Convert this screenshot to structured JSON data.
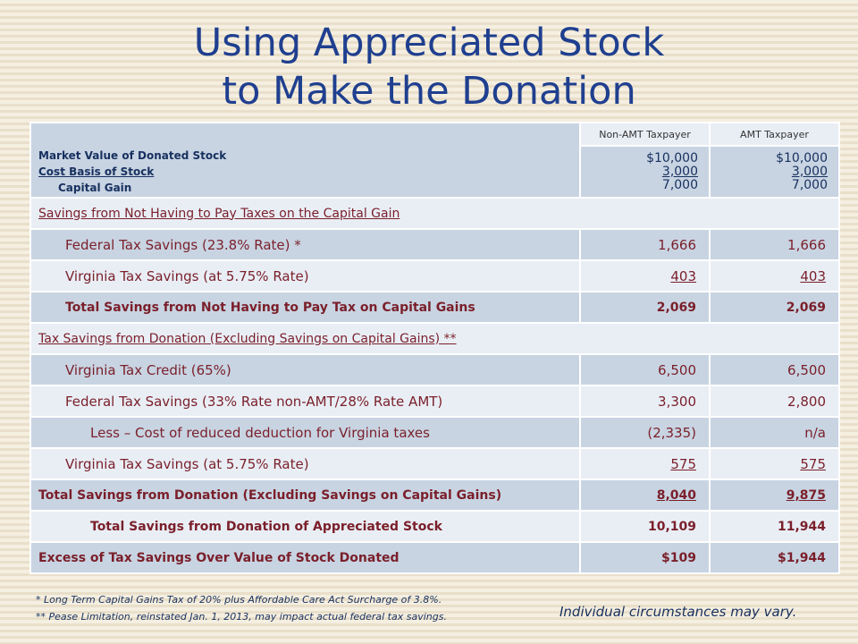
{
  "title": {
    "line1": "Using Appreciated Stock",
    "line2": "to Make the Donation"
  },
  "table": {
    "col_headers": [
      "Non-AMT Taxpayer",
      "AMT Taxpayer"
    ],
    "basis_labels": {
      "market_value": "Market Value of Donated Stock",
      "cost_basis": "Cost Basis of Stock",
      "capital_gain": "Capital Gain"
    },
    "basis_values": {
      "non_amt": [
        "$10,000",
        "3,000",
        "7,000"
      ],
      "amt": [
        "$10,000",
        "3,000",
        "7,000"
      ]
    },
    "section1": "Savings from Not Having to Pay Taxes on the Capital Gain",
    "section2": "Tax Savings from Donation (Excluding Savings on Capital Gains) **",
    "rows": [
      {
        "label": "Federal Tax Savings (23.8% Rate) *",
        "non_amt": "1,666",
        "amt": "1,666"
      },
      {
        "label": "Virginia Tax Savings (at 5.75% Rate)",
        "non_amt": "403",
        "amt": "403"
      },
      {
        "label": "Total Savings from Not Having to Pay Tax on Capital Gains",
        "non_amt": "2,069",
        "amt": "2,069"
      },
      {
        "label": "Virginia Tax Credit (65%)",
        "non_amt": "6,500",
        "amt": "6,500"
      },
      {
        "label": "Federal Tax Savings (33% Rate non-AMT/28% Rate AMT)",
        "non_amt": "3,300",
        "amt": "2,800"
      },
      {
        "label": "Less – Cost of reduced deduction for Virginia taxes",
        "non_amt": "(2,335)",
        "amt": "n/a"
      },
      {
        "label": "Virginia Tax Savings (at 5.75% Rate)",
        "non_amt": "575",
        "amt": "575"
      },
      {
        "label": "Total Savings from Donation (Excluding Savings on Capital Gains)",
        "non_amt": "8,040",
        "amt": "9,875"
      },
      {
        "label": "Total Savings from Donation of Appreciated Stock",
        "non_amt": "10,109",
        "amt": "11,944"
      },
      {
        "label": "Excess of Tax Savings Over Value of Stock Donated",
        "non_amt": "$109",
        "amt": "$1,944"
      }
    ]
  },
  "footnotes": {
    "note1": "* Long Term Capital Gains Tax of 20% plus Affordable Care Act Surcharge of 3.8%.",
    "note2": "** Pease Limitation, reinstated Jan. 1, 2013, may impact actual federal tax savings.",
    "disclaimer": "Individual circumstances may vary."
  },
  "colors": {
    "title": "#1f3f8f",
    "text": "#7a1f2a",
    "row_dark": "#c8d4e2",
    "row_light": "#e9eef5"
  }
}
